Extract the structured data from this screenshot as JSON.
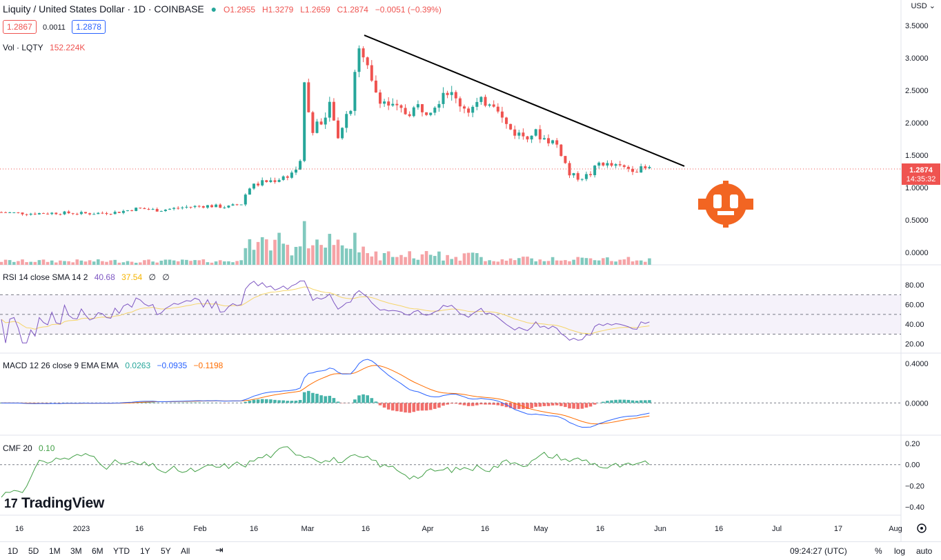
{
  "header": {
    "title": "Liquity / United States Dollar · 1D · COINBASE",
    "o": "O1.2955",
    "h": "H1.3279",
    "l": "L1.2659",
    "c": "C1.2874",
    "chg": "−0.0051 (−0.39%)",
    "bid": "1.2867",
    "spread": "0.0011",
    "ask": "1.2878",
    "vol_label": "Vol · LQTY",
    "vol_value": "152.224K",
    "currency": "USD"
  },
  "indicators": {
    "rsi": {
      "label": "RSI 14 close SMA 14 2",
      "v1": "40.68",
      "v2": "37.54",
      "v3": "∅",
      "v4": "∅"
    },
    "macd": {
      "label": "MACD 12 26 close 9 EMA EMA",
      "v1": "0.0263",
      "v2": "−0.0935",
      "v3": "−0.1198"
    },
    "cmf": {
      "label": "CMF 20",
      "v1": "0.10"
    }
  },
  "price_tag": {
    "price": "1.2874",
    "countdown": "14:35:32"
  },
  "bottom": {
    "timeframes": [
      "1D",
      "5D",
      "1M",
      "3M",
      "6M",
      "YTD",
      "1Y",
      "5Y",
      "All"
    ],
    "clock": "09:24:27 (UTC)",
    "pct": "%",
    "log": "log",
    "auto": "auto"
  },
  "branding": {
    "tradingview": "TradingView"
  },
  "colors": {
    "up": "#26a69a",
    "down": "#ef5350",
    "upvol": "#81c9be",
    "downvol": "#f5a3a6",
    "rsi": "#7e57c2",
    "rsima": "#f5d56a",
    "macd": "#2962ff",
    "signal": "#ff6d00",
    "cmf": "#43a047",
    "logo": "#f26522"
  },
  "chart_data": {
    "type": "candlestick",
    "x_axis_labels": [
      "16",
      "2023",
      "16",
      "Feb",
      "16",
      "Mar",
      "16",
      "Apr",
      "16",
      "May",
      "16",
      "Jun",
      "16",
      "Jul",
      "17",
      "Aug"
    ],
    "price_axis": {
      "ticks": [
        "3.5000",
        "3.0000",
        "2.5000",
        "2.0000",
        "1.5000",
        "1.0000",
        "0.5000",
        "0.0000"
      ],
      "range": [
        0,
        3.5
      ]
    },
    "trendline": {
      "from": {
        "date": "Mar 16",
        "price": 3.35
      },
      "to": {
        "date": "Jun 6",
        "price": 1.33
      }
    },
    "price_path": [
      [
        0,
        0.62
      ],
      [
        40,
        0.6
      ],
      [
        90,
        0.61
      ],
      [
        130,
        0.6
      ],
      [
        170,
        0.62
      ],
      [
        200,
        0.68
      ],
      [
        230,
        0.65
      ],
      [
        270,
        0.7
      ],
      [
        300,
        0.72
      ],
      [
        330,
        0.7
      ],
      [
        350,
        0.75
      ],
      [
        360,
        1.0
      ],
      [
        380,
        1.08
      ],
      [
        400,
        1.12
      ],
      [
        420,
        1.2
      ],
      [
        435,
        1.35
      ],
      [
        442,
        2.85
      ],
      [
        446,
        2.2
      ],
      [
        455,
        1.8
      ],
      [
        462,
        2.1
      ],
      [
        470,
        2.0
      ],
      [
        480,
        2.3
      ],
      [
        490,
        1.7
      ],
      [
        497,
        2.0
      ],
      [
        505,
        2.2
      ],
      [
        512,
        2.3
      ],
      [
        517,
        3.35
      ],
      [
        522,
        3.0
      ],
      [
        530,
        2.9
      ],
      [
        540,
        2.55
      ],
      [
        550,
        2.4
      ],
      [
        560,
        2.3
      ],
      [
        575,
        2.2
      ],
      [
        590,
        2.15
      ],
      [
        605,
        2.25
      ],
      [
        620,
        2.2
      ],
      [
        635,
        2.35
      ],
      [
        645,
        2.55
      ],
      [
        660,
        2.35
      ],
      [
        680,
        2.2
      ],
      [
        695,
        2.3
      ],
      [
        710,
        2.35
      ],
      [
        720,
        2.3
      ],
      [
        730,
        2.0
      ],
      [
        745,
        1.85
      ],
      [
        760,
        1.8
      ],
      [
        775,
        1.85
      ],
      [
        790,
        1.75
      ],
      [
        805,
        1.7
      ],
      [
        815,
        1.5
      ],
      [
        825,
        1.2
      ],
      [
        840,
        1.15
      ],
      [
        855,
        1.2
      ],
      [
        870,
        1.4
      ],
      [
        880,
        1.35
      ],
      [
        895,
        1.32
      ],
      [
        910,
        1.3
      ],
      [
        925,
        1.28
      ],
      [
        942,
        1.29
      ]
    ],
    "volume_axis": "volume bars",
    "rsi": {
      "axis_ticks": [
        "80.00",
        "60.00",
        "40.00",
        "20.00"
      ],
      "bands": [
        70,
        50,
        30
      ],
      "range": [
        17,
        85
      ]
    },
    "macd": {
      "axis_ticks": [
        "0.4000",
        "0.0000"
      ],
      "range": [
        -0.25,
        0.45
      ]
    },
    "cmf": {
      "axis_ticks": [
        "0.20",
        "0.00",
        "−0.20",
        "−0.40"
      ],
      "range": [
        -0.42,
        0.24
      ]
    }
  }
}
